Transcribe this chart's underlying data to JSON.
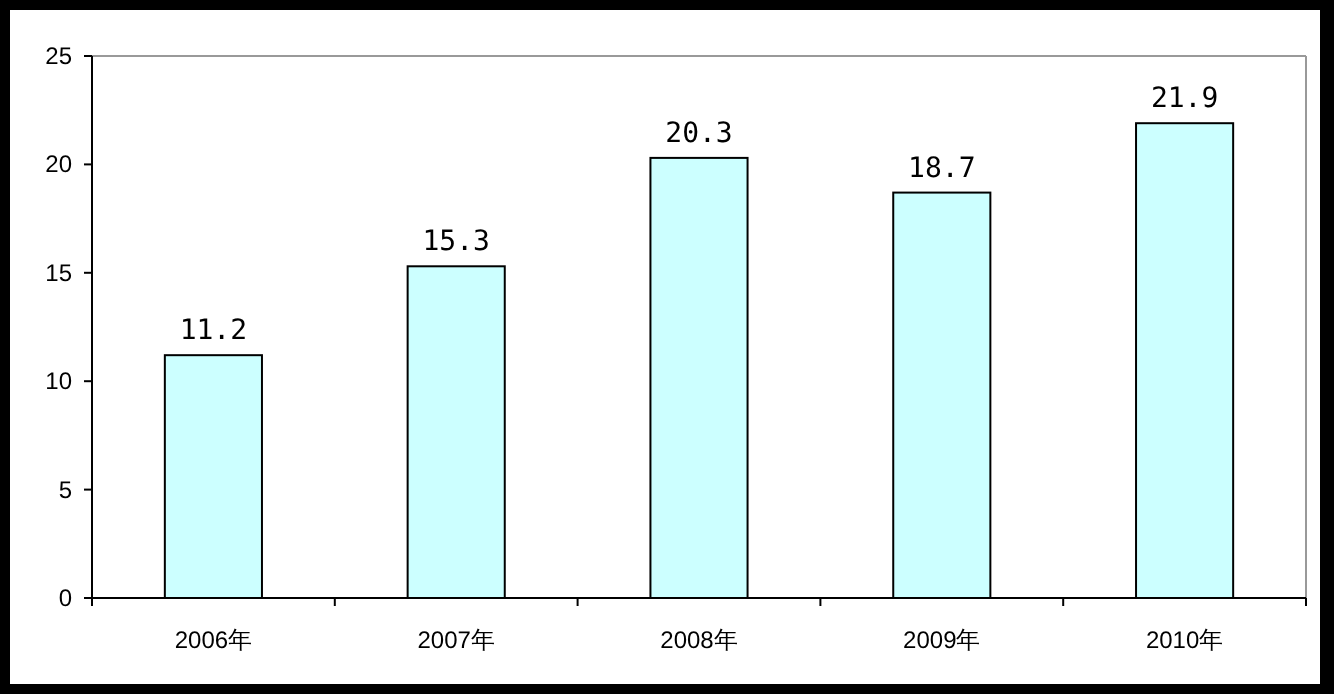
{
  "chart_data": {
    "type": "bar",
    "categories": [
      "2006年",
      "2007年",
      "2008年",
      "2009年",
      "2010年"
    ],
    "values": [
      11.2,
      15.3,
      20.3,
      18.7,
      21.9
    ],
    "color": "#ccffff",
    "ylim": [
      0,
      25
    ],
    "yticks": [
      0,
      5,
      10,
      15,
      20,
      25
    ],
    "data_labels": true
  }
}
